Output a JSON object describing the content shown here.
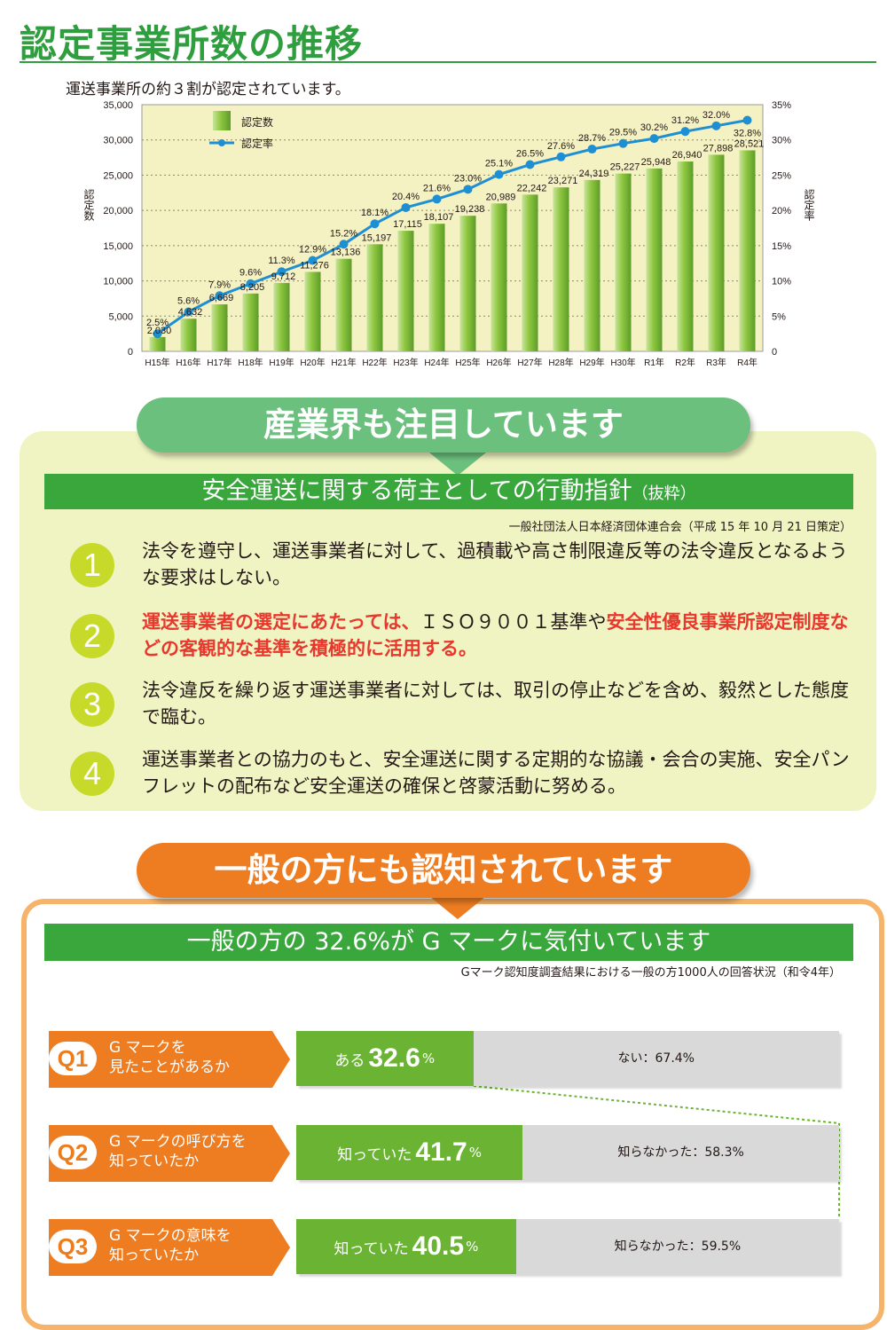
{
  "header": {
    "title": "認定事業所数の推移",
    "subtitle": "運送事業所の約３割が認定されています。"
  },
  "colors": {
    "accent_green": "#2e9e3e",
    "bar_green": "#8dc63f",
    "line_blue": "#1f8fd3",
    "plot_bg": "#f4f1c3",
    "banner_green": "#6cc07e",
    "banner_orange": "#ee7d22",
    "circle_yellowgreen": "#c7da2a",
    "highlight_red": "#e8382d"
  },
  "chart_data": {
    "type": "bar+line",
    "title": "",
    "categories": [
      "H15年",
      "H16年",
      "H17年",
      "H18年",
      "H19年",
      "H20年",
      "H21年",
      "H22年",
      "H23年",
      "H24年",
      "H25年",
      "H26年",
      "H27年",
      "H28年",
      "H29年",
      "H30年",
      "R1年",
      "R2年",
      "R3年",
      "R4年"
    ],
    "series": [
      {
        "name": "認定数",
        "type": "bar",
        "axis": "left",
        "values": [
          2030,
          4632,
          6669,
          8205,
          9712,
          11276,
          13136,
          15197,
          17115,
          18107,
          19238,
          20989,
          22242,
          23271,
          24319,
          25227,
          25948,
          26940,
          27898,
          28521
        ],
        "labels": [
          "2,030",
          "4,632",
          "6,669",
          "8,205",
          "9,712",
          "11,276",
          "13,136",
          "15,197",
          "17,115",
          "18,107",
          "19,238",
          "20,989",
          "22,242",
          "23,271",
          "24,319",
          "25,227",
          "25,948",
          "26,940",
          "27,898",
          "28,521"
        ]
      },
      {
        "name": "認定率",
        "type": "line",
        "axis": "right",
        "values": [
          2.5,
          5.6,
          7.9,
          9.6,
          11.3,
          12.9,
          15.2,
          18.1,
          20.4,
          21.6,
          23.0,
          25.1,
          26.5,
          27.6,
          28.7,
          29.5,
          30.2,
          31.2,
          32.0,
          32.8
        ],
        "labels": [
          "2.5%",
          "5.6%",
          "7.9%",
          "9.6%",
          "11.3%",
          "12.9%",
          "15.2%",
          "18.1%",
          "20.4%",
          "21.6%",
          "23.0%",
          "25.1%",
          "26.5%",
          "27.6%",
          "28.7%",
          "29.5%",
          "30.2%",
          "31.2%",
          "32.0%",
          "32.8%"
        ]
      }
    ],
    "ylabel": "認定数",
    "ylabel_right": "認定率",
    "ylim": [
      0,
      35000
    ],
    "y_ticks": [
      "0",
      "5,000",
      "10,000",
      "15,000",
      "20,000",
      "25,000",
      "30,000",
      "35,000"
    ],
    "ylim_right": [
      0,
      35
    ],
    "y_ticks_right": [
      "0",
      "5%",
      "10%",
      "15%",
      "20%",
      "25%",
      "30%",
      "35%"
    ],
    "grid": true,
    "legend_position": "top-left"
  },
  "section1": {
    "banner": "産業界も注目しています",
    "heading_main": "安全運送に関する荷主としての行動指針",
    "heading_suffix": "（抜粋）",
    "source": "一般社団法人日本経済団体連合会（平成 15 年 10 月 21 日策定）",
    "items": [
      {
        "num": "1",
        "text": "法令を遵守し、運送事業者に対して、過積載や高さ制限違反等の法令違反となるような要求はしない。"
      },
      {
        "num": "2",
        "text_a": "運送事業者の選定にあたっては、",
        "text_b": "ＩＳＯ９００１基準や",
        "text_c": "安全性優良事業所認定制度などの客観的な基準を積極的に活用する。"
      },
      {
        "num": "3",
        "text": "法令違反を繰り返す運送事業者に対しては、取引の停止などを含め、毅然とした態度で臨む。"
      },
      {
        "num": "4",
        "text": "運送事業者との協力のもと、安全運送に関する定期的な協議・会合の実施、安全パンフレットの配布など安全運送の確保と啓蒙活動に努める。"
      }
    ]
  },
  "section2": {
    "banner": "一般の方にも認知されています",
    "heading": "一般の方の 32.6%が G マークに気付いています",
    "source": "Gマーク認知度調査結果における一般の方1000人の回答状況（和令4年）",
    "questions": [
      {
        "num": "Q1",
        "line1": "G マークを",
        "line2": "見たことがあるか",
        "yes_label": "ある",
        "yes_value": "32.6",
        "yes_pct": 32.6,
        "percent_sign": "%",
        "no_label": "ない：67.4%"
      },
      {
        "num": "Q2",
        "line1": "G マークの呼び方を",
        "line2": "知っていたか",
        "yes_label": "知っていた",
        "yes_value": "41.7",
        "yes_pct": 41.7,
        "percent_sign": "%",
        "no_label": "知らなかった：58.3%"
      },
      {
        "num": "Q3",
        "line1": "G マークの意味を",
        "line2": "知っていたか",
        "yes_label": "知っていた",
        "yes_value": "40.5",
        "yes_pct": 40.5,
        "percent_sign": "%",
        "no_label": "知らなかった：59.5%"
      }
    ]
  }
}
